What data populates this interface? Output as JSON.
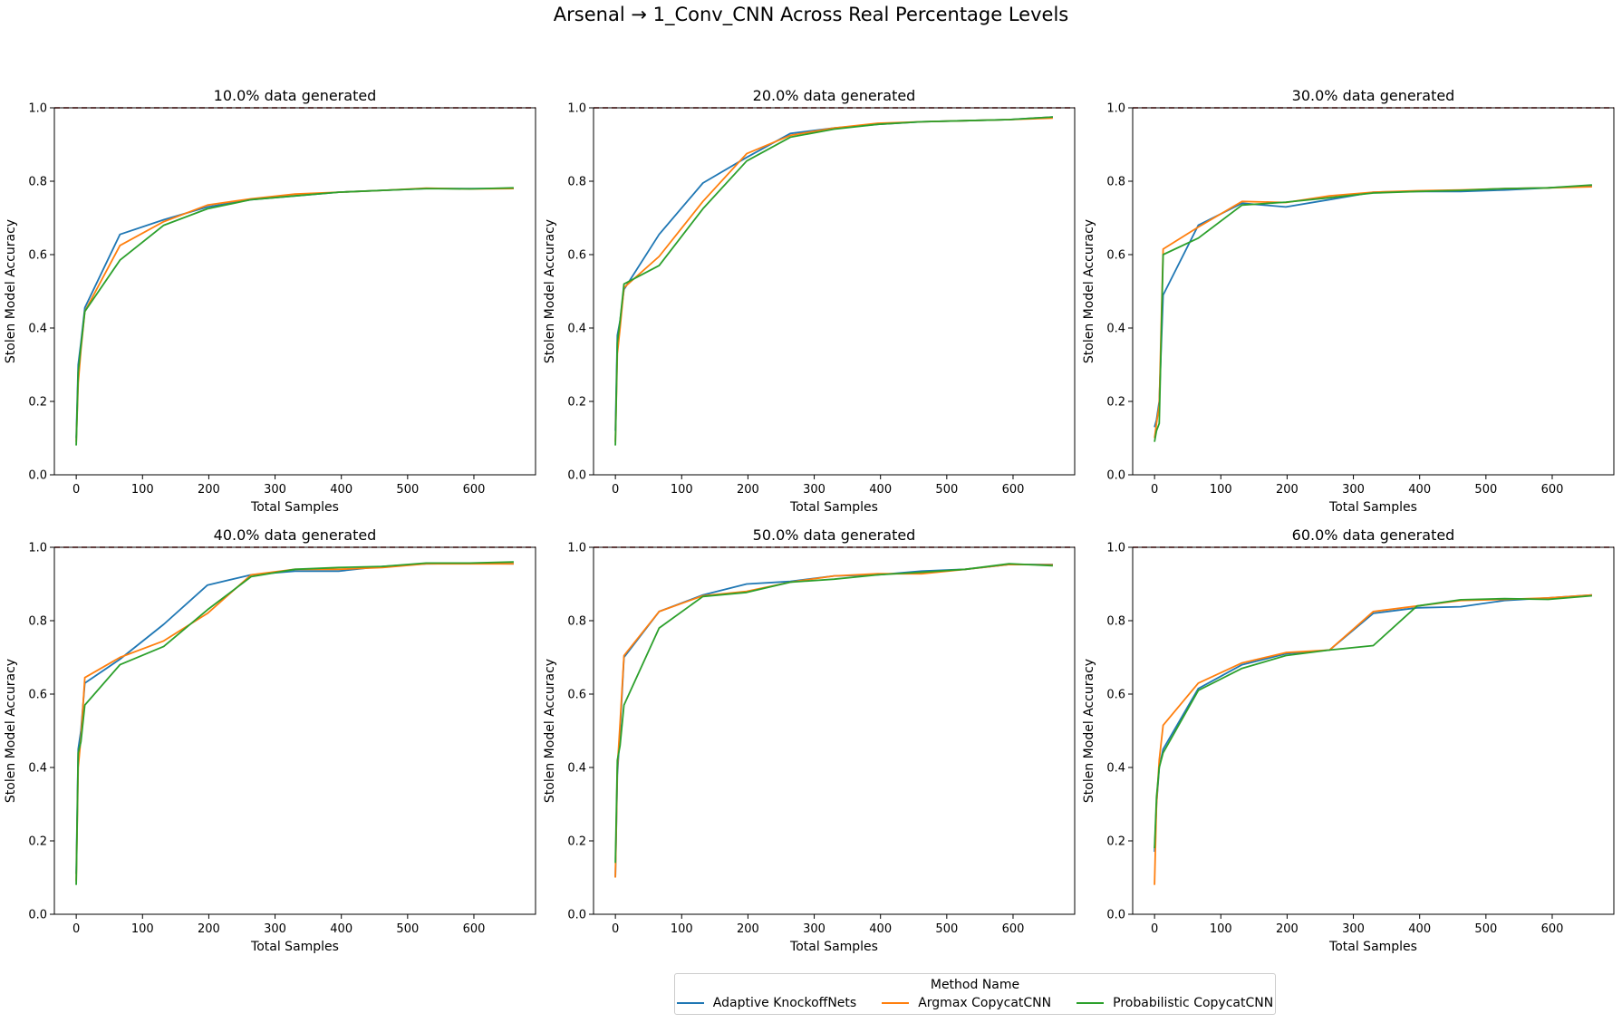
{
  "figure_title": "Arsenal → 1_Conv_CNN Across Real Percentage Levels",
  "colors": {
    "Adaptive KnockoffNets": "#1f77b4",
    "Argmax CopycatCNN": "#ff7f0e",
    "Probabilistic CopycatCNN": "#2ca02c",
    "reference_line": "#8b0000"
  },
  "legend": {
    "title": "Method Name",
    "placement": "bottom-center",
    "items": [
      "Adaptive KnockoffNets",
      "Argmax CopycatCNN",
      "Probabilistic CopycatCNN"
    ]
  },
  "chart_data": [
    {
      "type": "line",
      "title": "10.0% data generated",
      "xlabel": "Total Samples",
      "ylabel": "Stolen Model Accuracy",
      "xlim": [
        -33,
        693
      ],
      "ylim": [
        0,
        1.0
      ],
      "xticks": [
        0,
        100,
        200,
        300,
        400,
        500,
        600
      ],
      "yticks": [
        0.0,
        0.2,
        0.4,
        0.6,
        0.8,
        1.0
      ],
      "reference_y": 1.0,
      "x": [
        0,
        3,
        7,
        13,
        66,
        132,
        198,
        264,
        330,
        396,
        462,
        528,
        594,
        660
      ],
      "series": [
        {
          "name": "Adaptive KnockoffNets",
          "values": [
            0.1,
            0.3,
            0.36,
            0.455,
            0.655,
            0.695,
            0.73,
            0.75,
            0.76,
            0.77,
            0.775,
            0.78,
            0.78,
            0.78
          ]
        },
        {
          "name": "Argmax CopycatCNN",
          "values": [
            0.09,
            0.25,
            0.34,
            0.445,
            0.625,
            0.69,
            0.735,
            0.752,
            0.765,
            0.77,
            0.775,
            0.781,
            0.779,
            0.78
          ]
        },
        {
          "name": "Probabilistic CopycatCNN",
          "values": [
            0.08,
            0.28,
            0.35,
            0.445,
            0.585,
            0.68,
            0.725,
            0.75,
            0.76,
            0.77,
            0.775,
            0.78,
            0.779,
            0.782
          ]
        }
      ]
    },
    {
      "type": "line",
      "title": "20.0% data generated",
      "xlabel": "Total Samples",
      "ylabel": "Stolen Model Accuracy",
      "xlim": [
        -33,
        693
      ],
      "ylim": [
        0,
        1.0
      ],
      "xticks": [
        0,
        100,
        200,
        300,
        400,
        500,
        600
      ],
      "yticks": [
        0.0,
        0.2,
        0.4,
        0.6,
        0.8,
        1.0
      ],
      "reference_y": 1.0,
      "x": [
        0,
        3,
        7,
        13,
        66,
        132,
        198,
        264,
        330,
        396,
        462,
        528,
        594,
        660
      ],
      "series": [
        {
          "name": "Adaptive KnockoffNets",
          "values": [
            0.12,
            0.38,
            0.42,
            0.505,
            0.655,
            0.795,
            0.865,
            0.93,
            0.945,
            0.955,
            0.962,
            0.965,
            0.968,
            0.975
          ]
        },
        {
          "name": "Argmax CopycatCNN",
          "values": [
            0.09,
            0.33,
            0.4,
            0.51,
            0.595,
            0.745,
            0.875,
            0.925,
            0.945,
            0.958,
            0.962,
            0.965,
            0.968,
            0.972
          ]
        },
        {
          "name": "Probabilistic CopycatCNN",
          "values": [
            0.08,
            0.36,
            0.42,
            0.52,
            0.57,
            0.725,
            0.855,
            0.92,
            0.942,
            0.955,
            0.962,
            0.965,
            0.968,
            0.975
          ]
        }
      ]
    },
    {
      "type": "line",
      "title": "30.0% data generated",
      "xlabel": "Total Samples",
      "ylabel": "Stolen Model Accuracy",
      "xlim": [
        -33,
        693
      ],
      "ylim": [
        0,
        1.0
      ],
      "xticks": [
        0,
        100,
        200,
        300,
        400,
        500,
        600
      ],
      "yticks": [
        0.0,
        0.2,
        0.4,
        0.6,
        0.8,
        1.0
      ],
      "reference_y": 1.0,
      "x": [
        0,
        3,
        7,
        13,
        66,
        132,
        198,
        264,
        330,
        396,
        462,
        528,
        594,
        660
      ],
      "series": [
        {
          "name": "Adaptive KnockoffNets",
          "values": [
            0.13,
            0.15,
            0.2,
            0.49,
            0.68,
            0.74,
            0.73,
            0.75,
            0.77,
            0.772,
            0.772,
            0.776,
            0.782,
            0.788
          ]
        },
        {
          "name": "Argmax CopycatCNN",
          "values": [
            0.1,
            0.14,
            0.19,
            0.615,
            0.675,
            0.745,
            0.742,
            0.76,
            0.77,
            0.774,
            0.776,
            0.78,
            0.782,
            0.785
          ]
        },
        {
          "name": "Probabilistic CopycatCNN",
          "values": [
            0.09,
            0.12,
            0.14,
            0.6,
            0.645,
            0.735,
            0.743,
            0.755,
            0.768,
            0.772,
            0.775,
            0.78,
            0.782,
            0.79
          ]
        }
      ]
    },
    {
      "type": "line",
      "title": "40.0% data generated",
      "xlabel": "Total Samples",
      "ylabel": "Stolen Model Accuracy",
      "xlim": [
        -33,
        693
      ],
      "ylim": [
        0,
        1.0
      ],
      "xticks": [
        0,
        100,
        200,
        300,
        400,
        500,
        600
      ],
      "yticks": [
        0.0,
        0.2,
        0.4,
        0.6,
        0.8,
        1.0
      ],
      "reference_y": 1.0,
      "x": [
        0,
        3,
        7,
        13,
        66,
        132,
        198,
        264,
        330,
        396,
        462,
        528,
        594,
        660
      ],
      "series": [
        {
          "name": "Adaptive KnockoffNets",
          "values": [
            0.11,
            0.45,
            0.5,
            0.63,
            0.695,
            0.79,
            0.897,
            0.925,
            0.935,
            0.935,
            0.948,
            0.955,
            0.956,
            0.955
          ]
        },
        {
          "name": "Argmax CopycatCNN",
          "values": [
            0.09,
            0.4,
            0.48,
            0.645,
            0.7,
            0.745,
            0.82,
            0.925,
            0.94,
            0.94,
            0.945,
            0.955,
            0.955,
            0.955
          ]
        },
        {
          "name": "Probabilistic CopycatCNN",
          "values": [
            0.08,
            0.44,
            0.47,
            0.57,
            0.68,
            0.73,
            0.83,
            0.92,
            0.94,
            0.945,
            0.948,
            0.957,
            0.957,
            0.96
          ]
        }
      ]
    },
    {
      "type": "line",
      "title": "50.0% data generated",
      "xlabel": "Total Samples",
      "ylabel": "Stolen Model Accuracy",
      "xlim": [
        -33,
        693
      ],
      "ylim": [
        0,
        1.0
      ],
      "xticks": [
        0,
        100,
        200,
        300,
        400,
        500,
        600
      ],
      "yticks": [
        0.0,
        0.2,
        0.4,
        0.6,
        0.8,
        1.0
      ],
      "reference_y": 1.0,
      "x": [
        0,
        3,
        7,
        13,
        66,
        132,
        198,
        264,
        330,
        396,
        462,
        528,
        594,
        660
      ],
      "series": [
        {
          "name": "Adaptive KnockoffNets",
          "values": [
            0.1,
            0.38,
            0.5,
            0.7,
            0.825,
            0.87,
            0.9,
            0.907,
            0.922,
            0.925,
            0.935,
            0.94,
            0.953,
            0.953
          ]
        },
        {
          "name": "Argmax CopycatCNN",
          "values": [
            0.1,
            0.4,
            0.52,
            0.705,
            0.825,
            0.868,
            0.88,
            0.905,
            0.922,
            0.928,
            0.928,
            0.94,
            0.953,
            0.952
          ]
        },
        {
          "name": "Probabilistic CopycatCNN",
          "values": [
            0.14,
            0.42,
            0.46,
            0.57,
            0.78,
            0.866,
            0.877,
            0.905,
            0.913,
            0.925,
            0.932,
            0.94,
            0.955,
            0.95
          ]
        }
      ]
    },
    {
      "type": "line",
      "title": "60.0% data generated",
      "xlabel": "Total Samples",
      "ylabel": "Stolen Model Accuracy",
      "xlim": [
        -33,
        693
      ],
      "ylim": [
        0,
        1.0
      ],
      "xticks": [
        0,
        100,
        200,
        300,
        400,
        500,
        600
      ],
      "yticks": [
        0.0,
        0.2,
        0.4,
        0.6,
        0.8,
        1.0
      ],
      "reference_y": 1.0,
      "x": [
        0,
        3,
        7,
        13,
        66,
        132,
        198,
        264,
        330,
        396,
        462,
        528,
        594,
        660
      ],
      "series": [
        {
          "name": "Adaptive KnockoffNets",
          "values": [
            0.17,
            0.3,
            0.4,
            0.45,
            0.615,
            0.68,
            0.71,
            0.72,
            0.82,
            0.835,
            0.838,
            0.855,
            0.862,
            0.87
          ]
        },
        {
          "name": "Argmax CopycatCNN",
          "values": [
            0.08,
            0.3,
            0.42,
            0.515,
            0.63,
            0.685,
            0.713,
            0.72,
            0.825,
            0.84,
            0.855,
            0.858,
            0.862,
            0.87
          ]
        },
        {
          "name": "Probabilistic CopycatCNN",
          "values": [
            0.18,
            0.32,
            0.4,
            0.44,
            0.61,
            0.67,
            0.705,
            0.72,
            0.732,
            0.84,
            0.857,
            0.86,
            0.858,
            0.868
          ]
        }
      ]
    }
  ]
}
